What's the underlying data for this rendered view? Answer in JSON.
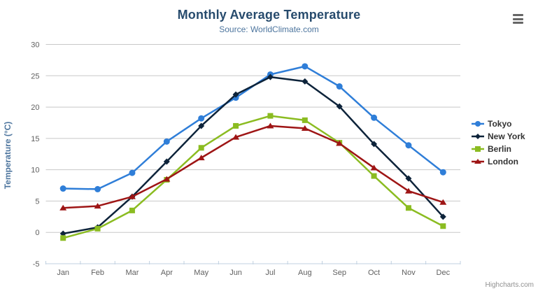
{
  "chart": {
    "title": "Monthly Average Temperature",
    "subtitle": "Source: WorldClimate.com",
    "y_axis_title": "Temperature (°C)",
    "credits": "Highcharts.com",
    "grid_color": "#c8c8c8",
    "axis_line_color": "#c0d0e0",
    "tick_label_color": "#606060",
    "title_color": "#274b6d",
    "subtitle_color": "#4d759e",
    "menu_icon": "hamburger-icon"
  },
  "chart_data": {
    "type": "line",
    "title": "Monthly Average Temperature",
    "subtitle": "Source: WorldClimate.com",
    "xlabel": "",
    "ylabel": "Temperature (°C)",
    "ylim": [
      -5,
      30
    ],
    "yticks": [
      -5,
      0,
      5,
      10,
      15,
      20,
      25,
      30
    ],
    "grid": true,
    "legend_position": "right",
    "categories": [
      "Jan",
      "Feb",
      "Mar",
      "Apr",
      "May",
      "Jun",
      "Jul",
      "Aug",
      "Sep",
      "Oct",
      "Nov",
      "Dec"
    ],
    "series": [
      {
        "name": "Tokyo",
        "color": "#2f7ed8",
        "marker": "circle",
        "values": [
          7.0,
          6.9,
          9.5,
          14.5,
          18.2,
          21.5,
          25.2,
          26.5,
          23.3,
          18.3,
          13.9,
          9.6
        ]
      },
      {
        "name": "New York",
        "color": "#0d233a",
        "marker": "diamond",
        "values": [
          -0.2,
          0.8,
          5.7,
          11.3,
          17.0,
          22.0,
          24.8,
          24.1,
          20.1,
          14.1,
          8.6,
          2.5
        ]
      },
      {
        "name": "Berlin",
        "color": "#8bbc21",
        "marker": "square",
        "values": [
          -0.9,
          0.6,
          3.5,
          8.4,
          13.5,
          17.0,
          18.6,
          17.9,
          14.3,
          9.0,
          3.9,
          1.0
        ]
      },
      {
        "name": "London",
        "color": "#9e1515",
        "marker": "triangle",
        "values": [
          3.9,
          4.2,
          5.7,
          8.5,
          11.9,
          15.2,
          17.0,
          16.6,
          14.2,
          10.3,
          6.6,
          4.8
        ]
      }
    ]
  }
}
